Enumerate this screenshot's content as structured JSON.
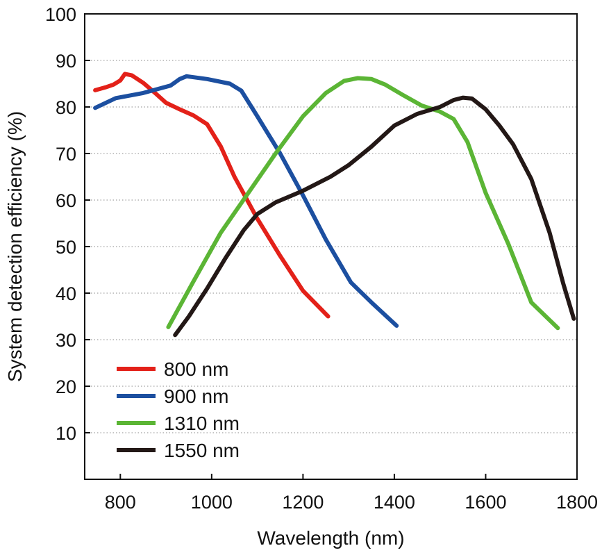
{
  "chart_data": {
    "type": "line",
    "title": "",
    "xlabel": "Wavelength (nm)",
    "ylabel": "System detection efficiency (%)",
    "xlim": [
      722,
      1800
    ],
    "ylim": [
      0,
      100
    ],
    "xticks": [
      800,
      1000,
      1200,
      1400,
      1600,
      1800
    ],
    "yticks": [
      10,
      20,
      30,
      40,
      50,
      60,
      70,
      80,
      90,
      100
    ],
    "grid": "horizontal dotted",
    "legend_position": "bottom-left",
    "series": [
      {
        "name": "800 nm",
        "color": "#e32119",
        "x": [
          745,
          770,
          785,
          800,
          810,
          825,
          850,
          875,
          900,
          930,
          960,
          990,
          1020,
          1050,
          1100,
          1150,
          1200,
          1255
        ],
        "y": [
          83.6,
          84.3,
          84.8,
          85.7,
          87.1,
          86.8,
          85.2,
          83.1,
          80.9,
          79.5,
          78.2,
          76.3,
          71.5,
          65.0,
          56.0,
          48.0,
          40.5,
          35.0
        ]
      },
      {
        "name": "900 nm",
        "color": "#1c4fa0",
        "x": [
          745,
          790,
          850,
          910,
          930,
          945,
          990,
          1040,
          1065,
          1100,
          1150,
          1200,
          1250,
          1305,
          1350,
          1405
        ],
        "y": [
          79.8,
          81.9,
          83.0,
          84.6,
          86.0,
          86.6,
          86.0,
          85.0,
          83.5,
          78.0,
          70.0,
          61.0,
          51.5,
          42.3,
          38.0,
          33.0
        ]
      },
      {
        "name": "1310 nm",
        "color": "#5bb535",
        "x": [
          905,
          960,
          1020,
          1080,
          1140,
          1200,
          1250,
          1290,
          1320,
          1350,
          1380,
          1420,
          1460,
          1500,
          1530,
          1560,
          1600,
          1650,
          1700,
          1758
        ],
        "y": [
          32.7,
          42.5,
          53.0,
          61.5,
          70.0,
          78.0,
          83.0,
          85.6,
          86.2,
          86.0,
          84.8,
          82.5,
          80.3,
          79.0,
          77.4,
          72.5,
          61.5,
          50.5,
          38.0,
          32.5
        ]
      },
      {
        "name": "1550 nm",
        "color": "#231816",
        "x": [
          920,
          950,
          990,
          1030,
          1070,
          1100,
          1140,
          1200,
          1260,
          1300,
          1350,
          1400,
          1450,
          1500,
          1530,
          1550,
          1570,
          1600,
          1630,
          1660,
          1700,
          1740,
          1770,
          1793
        ],
        "y": [
          31.0,
          35.0,
          41.0,
          47.5,
          53.5,
          57.0,
          59.5,
          62.0,
          65.0,
          67.5,
          71.5,
          76.0,
          78.5,
          80.0,
          81.5,
          82.0,
          81.8,
          79.5,
          76.0,
          72.0,
          64.5,
          53.0,
          42.0,
          34.5
        ]
      }
    ]
  }
}
